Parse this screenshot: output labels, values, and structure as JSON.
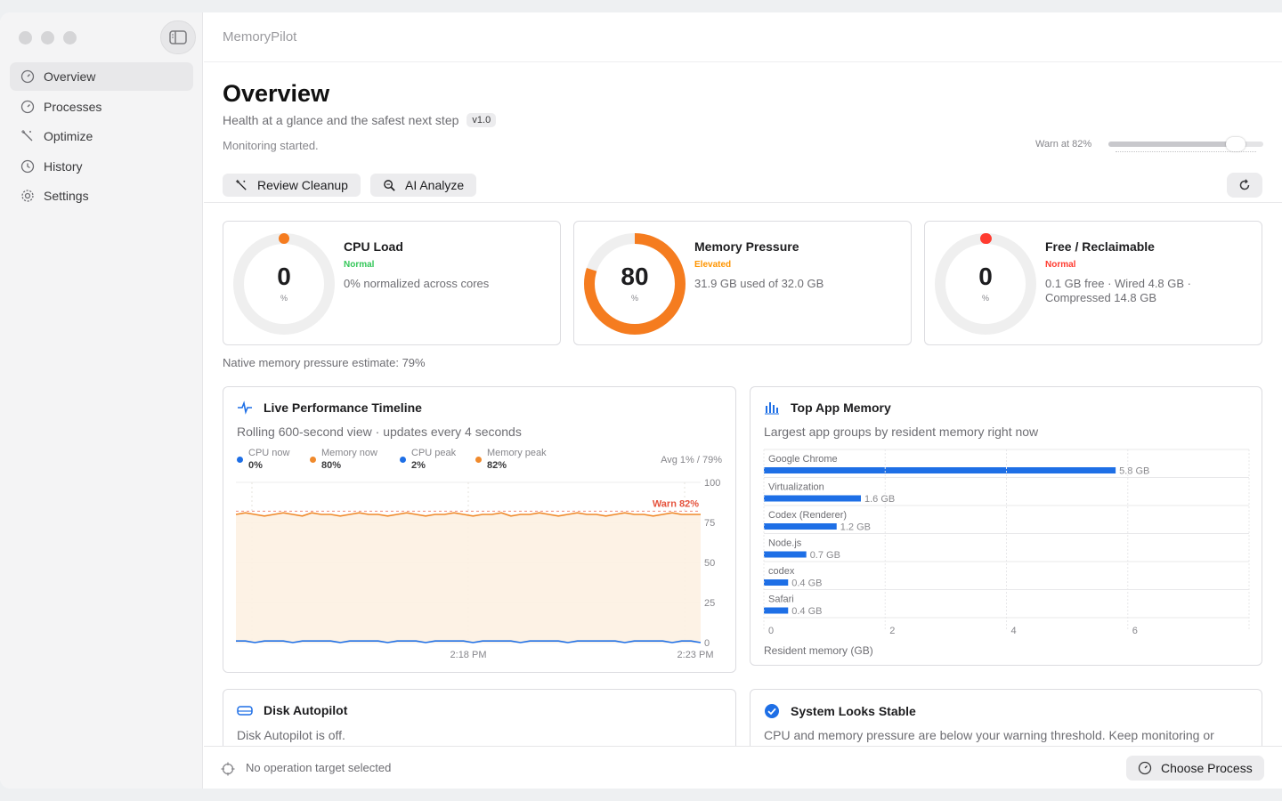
{
  "app": {
    "title": "MemoryPilot"
  },
  "sidebar": {
    "items": [
      {
        "label": "Overview",
        "icon": "gauge-icon",
        "active": true
      },
      {
        "label": "Processes",
        "icon": "gauge-icon"
      },
      {
        "label": "Optimize",
        "icon": "wand-icon"
      },
      {
        "label": "History",
        "icon": "clock-icon"
      },
      {
        "label": "Settings",
        "icon": "gear-icon"
      }
    ]
  },
  "header": {
    "title": "Overview",
    "subtitle": "Health at a glance and the safest next step",
    "version": "v1.0",
    "status": "Monitoring started.",
    "warn_label": "Warn at 82%",
    "warn_level": 0.82,
    "review_label": "Review Cleanup",
    "analyze_label": "AI Analyze"
  },
  "stats": {
    "cpu": {
      "title": "CPU Load",
      "value": "0",
      "unit": "%",
      "status": "Normal",
      "status_color": "#34c759",
      "detail": "0% normalized across cores",
      "ring_fraction": 0,
      "ring_color": "#f57c1f"
    },
    "memory": {
      "title": "Memory Pressure",
      "value": "80",
      "unit": "%",
      "status": "Elevated",
      "status_color": "#ff9500",
      "detail": "31.9 GB used of 32.0 GB",
      "ring_fraction": 0.8,
      "ring_color": "#f57c1f"
    },
    "free": {
      "title": "Free / Reclaimable",
      "value": "0",
      "unit": "%",
      "status": "Normal",
      "status_color": "#ff3b30",
      "detail": "0.1 GB free · Wired 4.8 GB · Compressed 14.8 GB",
      "ring_fraction": 0.003,
      "ring_color": "#ff3b30"
    }
  },
  "estimate": "Native memory pressure estimate: 79%",
  "timeline": {
    "title": "Live Performance Timeline",
    "subtitle": "Rolling 600-second view · updates every 4 seconds",
    "legend": [
      {
        "label": "CPU now",
        "value": "0%",
        "color": "#1e6fe6"
      },
      {
        "label": "Memory now",
        "value": "80%",
        "color": "#f08a2c"
      },
      {
        "label": "CPU peak",
        "value": "2%",
        "color": "#1e6fe6"
      },
      {
        "label": "Memory peak",
        "value": "82%",
        "color": "#f08a2c"
      }
    ],
    "avg": "Avg 1% / 79%",
    "warn_label": "Warn 82%"
  },
  "top_memory": {
    "title": "Top App Memory",
    "subtitle": "Largest app groups by resident memory right now",
    "xlabel": "Resident memory (GB)"
  },
  "disk": {
    "title": "Disk Autopilot",
    "text": "Disk Autopilot is off."
  },
  "system": {
    "title": "System Looks Stable",
    "text": "CPU and memory pressure are below your warning threshold. Keep monitoring or"
  },
  "bottom": {
    "target": "No operation target selected",
    "choose_label": "Choose Process"
  },
  "chart_data": [
    {
      "type": "line",
      "title": "Live Performance Timeline",
      "x_ticks": [
        "2:18 PM",
        "2:23 PM"
      ],
      "ylim": [
        0,
        100
      ],
      "y_ticks": [
        0,
        25,
        50,
        75,
        100
      ],
      "threshold": 82,
      "series": [
        {
          "name": "Memory",
          "color": "#f08a2c",
          "values": [
            80,
            81,
            80,
            79,
            80,
            81,
            80,
            79,
            81,
            80,
            80,
            79,
            80,
            81,
            80,
            80,
            79,
            80,
            81,
            80,
            79,
            80,
            80,
            81,
            80,
            79,
            80,
            80,
            81,
            79,
            80,
            80,
            81,
            80,
            79,
            80,
            81,
            80,
            80,
            79,
            80,
            81,
            80,
            80,
            79,
            80,
            81,
            80,
            80,
            80
          ]
        },
        {
          "name": "CPU",
          "color": "#1e6fe6",
          "values": [
            1,
            1,
            0,
            1,
            1,
            1,
            0,
            1,
            1,
            1,
            1,
            0,
            1,
            1,
            1,
            1,
            0,
            1,
            1,
            1,
            0,
            1,
            1,
            1,
            1,
            0,
            1,
            1,
            1,
            1,
            0,
            1,
            1,
            1,
            1,
            0,
            1,
            1,
            1,
            1,
            1,
            0,
            1,
            1,
            1,
            1,
            0,
            1,
            1,
            0
          ]
        }
      ]
    },
    {
      "type": "bar",
      "orientation": "horizontal",
      "title": "Top App Memory",
      "xlabel": "Resident memory (GB)",
      "xlim": [
        0,
        8
      ],
      "x_ticks": [
        0,
        2,
        4,
        6
      ],
      "categories": [
        "Google Chrome",
        "Virtualization",
        "Codex (Renderer)",
        "Node.js",
        "codex",
        "Safari"
      ],
      "values": [
        5.8,
        1.6,
        1.2,
        0.7,
        0.4,
        0.4
      ],
      "value_labels": [
        "5.8 GB",
        "1.6 GB",
        "1.2 GB",
        "0.7 GB",
        "0.4 GB",
        "0.4 GB"
      ],
      "color": "#1e6fe6"
    }
  ]
}
